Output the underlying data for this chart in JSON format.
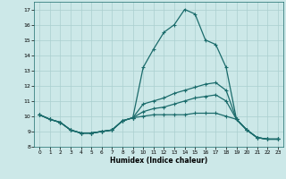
{
  "xlabel": "Humidex (Indice chaleur)",
  "ylabel": "",
  "xlim": [
    -0.5,
    23.5
  ],
  "ylim": [
    8,
    17.5
  ],
  "yticks": [
    8,
    9,
    10,
    11,
    12,
    13,
    14,
    15,
    16,
    17
  ],
  "xticks": [
    0,
    1,
    2,
    3,
    4,
    5,
    6,
    7,
    8,
    9,
    10,
    11,
    12,
    13,
    14,
    15,
    16,
    17,
    18,
    19,
    20,
    21,
    22,
    23
  ],
  "bg_color": "#cce8e8",
  "grid_color": "#aacfcf",
  "line_color": "#1a6b6b",
  "line_width": 0.9,
  "marker": "+",
  "marker_size": 3,
  "series": [
    [
      10.1,
      9.8,
      9.6,
      9.1,
      8.9,
      8.9,
      9.0,
      9.1,
      9.7,
      9.9,
      13.2,
      14.4,
      15.5,
      16.0,
      17.0,
      16.7,
      15.0,
      14.7,
      13.2,
      9.8,
      9.1,
      8.6,
      8.5,
      8.5
    ],
    [
      10.1,
      9.8,
      9.6,
      9.1,
      8.9,
      8.9,
      9.0,
      9.1,
      9.7,
      9.9,
      10.8,
      11.0,
      11.2,
      11.5,
      11.7,
      11.9,
      12.1,
      12.2,
      11.7,
      9.8,
      9.1,
      8.6,
      8.5,
      8.5
    ],
    [
      10.1,
      9.8,
      9.6,
      9.1,
      8.9,
      8.9,
      9.0,
      9.1,
      9.7,
      9.9,
      10.3,
      10.5,
      10.6,
      10.8,
      11.0,
      11.2,
      11.3,
      11.4,
      11.0,
      9.8,
      9.1,
      8.6,
      8.5,
      8.5
    ],
    [
      10.1,
      9.8,
      9.6,
      9.1,
      8.9,
      8.9,
      9.0,
      9.1,
      9.7,
      9.9,
      10.0,
      10.1,
      10.1,
      10.1,
      10.1,
      10.2,
      10.2,
      10.2,
      10.0,
      9.8,
      9.1,
      8.6,
      8.5,
      8.5
    ]
  ]
}
